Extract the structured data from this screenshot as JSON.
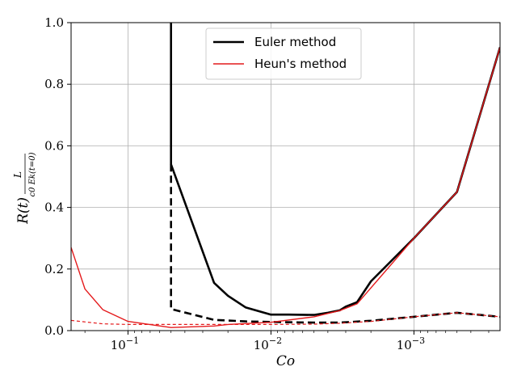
{
  "chart_data": {
    "type": "line",
    "xlabel": "Co",
    "ylabel": "R(t) L / (c0 Ek(t=0))",
    "ylabel_parts": {
      "prefix": "R(t)",
      "numerator": "L",
      "denominator": "c0 Ek(t=0)"
    },
    "x_scale": "log",
    "x_inverted": true,
    "xlim": [
      0.25,
      0.00025
    ],
    "ylim": [
      0.0,
      1.0
    ],
    "grid": true,
    "legend_position": "top-center",
    "x_ticks": [
      {
        "value": 0.1,
        "base": "10",
        "exp": "−1"
      },
      {
        "value": 0.01,
        "base": "10",
        "exp": "−2"
      },
      {
        "value": 0.001,
        "base": "10",
        "exp": "−3"
      }
    ],
    "y_ticks": [
      {
        "value": 0.0,
        "label": "0.0"
      },
      {
        "value": 0.2,
        "label": "0.2"
      },
      {
        "value": 0.4,
        "label": "0.4"
      },
      {
        "value": 0.6,
        "label": "0.6"
      },
      {
        "value": 0.8,
        "label": "0.8"
      },
      {
        "value": 1.0,
        "label": "1.0"
      }
    ],
    "legend": [
      {
        "label": "Euler method",
        "color": "#000000",
        "width": 2.6
      },
      {
        "label": "Heun's method",
        "color": "#e41a1c",
        "width": 1.4
      }
    ],
    "series": [
      {
        "name": "Euler method",
        "color": "#000000",
        "width": 2.6,
        "dash": "",
        "x": [
          0.05,
          0.05,
          0.025,
          0.02,
          0.015,
          0.01,
          0.0075,
          0.005,
          0.004,
          0.0033,
          0.003,
          0.0025,
          0.002,
          0.001,
          0.0005,
          0.00025
        ],
        "y": [
          1.3,
          0.54,
          0.155,
          0.113,
          0.075,
          0.052,
          0.052,
          0.051,
          0.058,
          0.066,
          0.078,
          0.092,
          0.16,
          0.3,
          0.45,
          0.92
        ]
      },
      {
        "name": "Euler method",
        "color": "#000000",
        "width": 2.6,
        "dash": "9,5",
        "x": [
          0.05,
          0.05,
          0.025,
          0.015,
          0.01,
          0.005,
          0.0033,
          0.002,
          0.001,
          0.0005,
          0.00025
        ],
        "y": [
          0.54,
          0.07,
          0.035,
          0.03,
          0.028,
          0.026,
          0.026,
          0.032,
          0.045,
          0.058,
          0.045
        ]
      },
      {
        "name": "Heun's method",
        "color": "#e41a1c",
        "width": 1.4,
        "dash": "",
        "x": [
          0.25,
          0.2,
          0.15,
          0.1,
          0.0667,
          0.05,
          0.025,
          0.02,
          0.01,
          0.005,
          0.0033,
          0.0025,
          0.001,
          0.0005,
          0.00025
        ],
        "y": [
          0.27,
          0.135,
          0.068,
          0.03,
          0.018,
          0.01,
          0.015,
          0.02,
          0.027,
          0.045,
          0.065,
          0.087,
          0.3,
          0.45,
          0.92
        ]
      },
      {
        "name": "Heun's method",
        "color": "#e41a1c",
        "width": 1.2,
        "dash": "4,3",
        "x": [
          0.25,
          0.15,
          0.1,
          0.05,
          0.02,
          0.01,
          0.005,
          0.0033,
          0.002,
          0.001,
          0.0005,
          0.00025
        ],
        "y": [
          0.033,
          0.022,
          0.02,
          0.02,
          0.02,
          0.02,
          0.021,
          0.024,
          0.03,
          0.045,
          0.058,
          0.045
        ]
      }
    ]
  }
}
